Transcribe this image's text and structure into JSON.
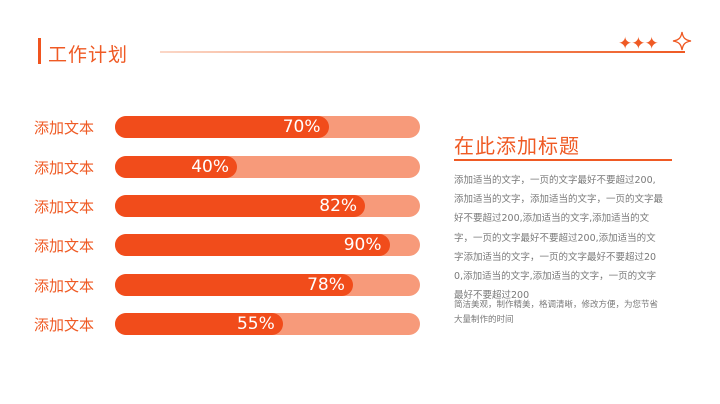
{
  "header": {
    "title": "工作计划",
    "stars": "✦✦✦"
  },
  "bars": [
    {
      "label": "添加文本",
      "value": 70,
      "value_text": "70%"
    },
    {
      "label": "添加文本",
      "value": 40,
      "value_text": "40%"
    },
    {
      "label": "添加文本",
      "value": 82,
      "value_text": "82%"
    },
    {
      "label": "添加文本",
      "value": 90,
      "value_text": "90%"
    },
    {
      "label": "添加文本",
      "value": 78,
      "value_text": "78%"
    },
    {
      "label": "添加文本",
      "value": 55,
      "value_text": "55%"
    }
  ],
  "side": {
    "title": "在此添加标题",
    "body": "添加适当的文字，一页的文字最好不要超过200,添加适当的文字，添加适当的文字，一页的文字最好不要超过200,添加适当的文字,添加适当的文字，一页的文字最好不要超过200,添加适当的文字添加适当的文字，一页的文字最好不要超过200,添加适当的文字,添加适当的文字，一页的文字最好不要超过200",
    "note": "简洁美观，制作精美，格调清晰，修改方便，为您节省大量制作的时间"
  },
  "colors": {
    "accent": "#ef5a24",
    "bar_fill": "#f14c1b",
    "bar_track": "#f79a7a"
  }
}
